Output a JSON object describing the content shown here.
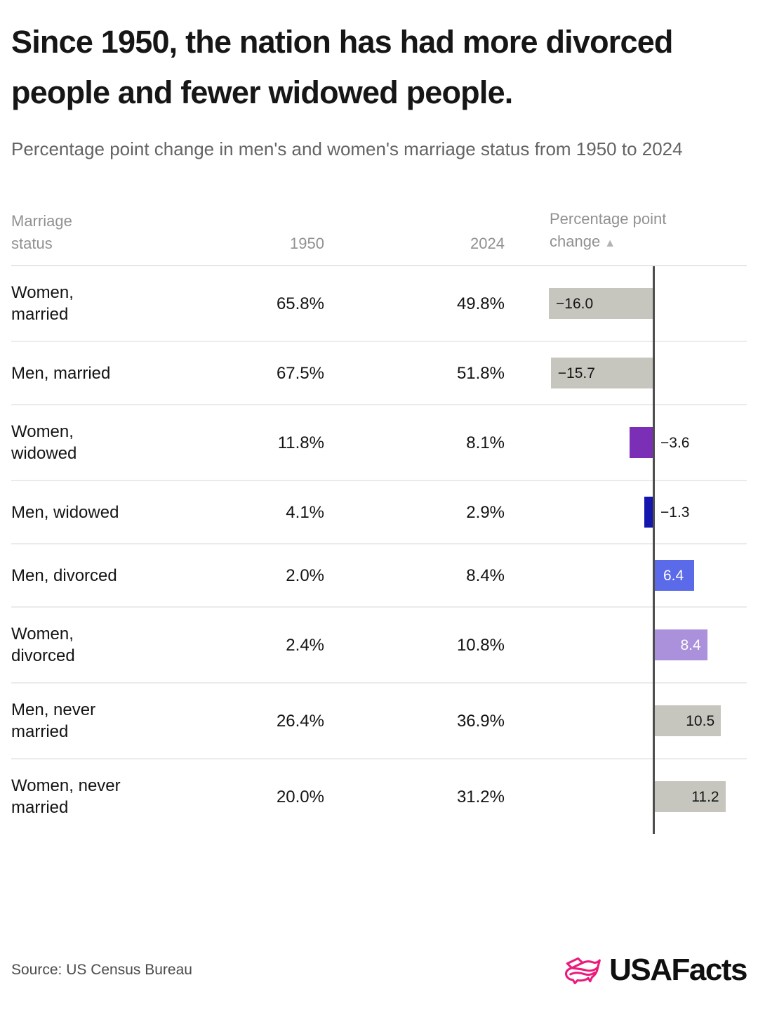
{
  "header": {
    "title": "Since 1950, the nation has had more divorced people and fewer widowed people.",
    "subtitle": "Percentage point change in men's and women's marriage status from 1950 to 2024"
  },
  "table": {
    "columns": {
      "status": "Marriage status",
      "year1": "1950",
      "year2": "2024",
      "change": "Percentage point change",
      "sort_icon": "▲"
    },
    "rows": [
      {
        "status": "Women, married",
        "v1950": "65.8%",
        "v2024": "49.8%",
        "change": -16.0,
        "change_label": "−16.0",
        "bar_color": "#c7c6be",
        "label_placement": "inside-start",
        "label_color": "#141414"
      },
      {
        "status": "Men, married",
        "v1950": "67.5%",
        "v2024": "51.8%",
        "change": -15.7,
        "change_label": "−15.7",
        "bar_color": "#c7c6be",
        "label_placement": "inside-start",
        "label_color": "#141414"
      },
      {
        "status": "Women, widowed",
        "v1950": "11.8%",
        "v2024": "8.1%",
        "change": -3.6,
        "change_label": "−3.6",
        "bar_color": "#7b2fb7",
        "label_placement": "outside-end",
        "label_color": "#141414"
      },
      {
        "status": "Men, widowed",
        "v1950": "4.1%",
        "v2024": "2.9%",
        "change": -1.3,
        "change_label": "−1.3",
        "bar_color": "#1516ae",
        "label_placement": "outside-end",
        "label_color": "#141414"
      },
      {
        "status": "Men, divorced",
        "v1950": "2.0%",
        "v2024": "8.4%",
        "change": 6.4,
        "change_label": "6.4",
        "bar_color": "#5a6ae8",
        "label_placement": "inside-center",
        "label_color": "#ffffff"
      },
      {
        "status": "Women, divorced",
        "v1950": "2.4%",
        "v2024": "10.8%",
        "change": 8.4,
        "change_label": "8.4",
        "bar_color": "#ab90dc",
        "label_placement": "inside-end",
        "label_color": "#ffffff"
      },
      {
        "status": "Men, never married",
        "v1950": "26.4%",
        "v2024": "36.9%",
        "change": 10.5,
        "change_label": "10.5",
        "bar_color": "#c7c6be",
        "label_placement": "inside-end",
        "label_color": "#141414"
      },
      {
        "status": "Women, never married",
        "v1950": "20.0%",
        "v2024": "31.2%",
        "change": 11.2,
        "change_label": "11.2",
        "bar_color": "#c7c6be",
        "label_placement": "inside-end",
        "label_color": "#141414"
      }
    ]
  },
  "footer": {
    "source": "Source: US Census Bureau",
    "logo_text": "USAFacts",
    "logo_icon": "usa-map-ribbon-icon",
    "logo_color": "#ec1a7b"
  },
  "colors": {
    "axis": "#4d4d4d",
    "separator": "#ebebeb",
    "bar_gray": "#c7c6be",
    "bar_purple": "#7b2fb7",
    "bar_navy": "#1516ae",
    "bar_blue": "#5a6ae8",
    "bar_lavender": "#ab90dc",
    "header_text": "#919191"
  },
  "chart_data": {
    "type": "bar",
    "orientation": "horizontal",
    "title": "Since 1950, the nation has had more divorced people and fewer widowed people.",
    "subtitle": "Percentage point change in men's and women's marriage status from 1950 to 2024",
    "categories": [
      "Women, married",
      "Men, married",
      "Women, widowed",
      "Men, widowed",
      "Men, divorced",
      "Women, divorced",
      "Men, never married",
      "Women, never married"
    ],
    "series": [
      {
        "name": "1950",
        "unit": "%",
        "values": [
          65.8,
          67.5,
          11.8,
          4.1,
          2.0,
          2.4,
          26.4,
          20.0
        ]
      },
      {
        "name": "2024",
        "unit": "%",
        "values": [
          49.8,
          51.8,
          8.1,
          2.9,
          8.4,
          10.8,
          36.9,
          31.2
        ]
      },
      {
        "name": "Percentage point change",
        "unit": "pp",
        "values": [
          -16.0,
          -15.7,
          -3.6,
          -1.3,
          6.4,
          8.4,
          10.5,
          11.2
        ]
      }
    ],
    "xlim": [
      -16.0,
      11.2
    ],
    "grid": false,
    "legend": false,
    "zero_line": true,
    "source": "US Census Bureau"
  }
}
